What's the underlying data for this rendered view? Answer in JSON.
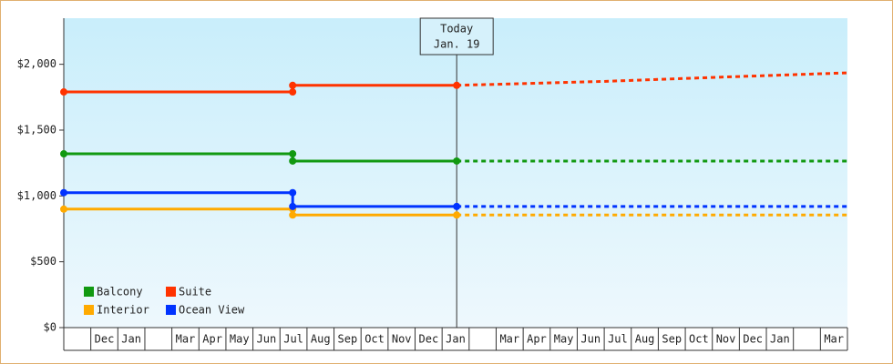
{
  "chart_data": {
    "type": "line",
    "categories": [
      null,
      "Dec",
      "Jan",
      null,
      "Mar",
      "Apr",
      "May",
      "Jun",
      "Jul",
      "Aug",
      "Sep",
      "Oct",
      "Nov",
      "Dec",
      "Jan",
      null,
      "Mar",
      "Apr",
      "May",
      "Jun",
      "Jul",
      "Aug",
      "Sep",
      "Oct",
      "Nov",
      "Dec",
      "Jan",
      null,
      "Mar"
    ],
    "xlim": [
      0,
      29
    ],
    "ylim": [
      0,
      2350
    ],
    "yticks": [
      {
        "value": 0,
        "label": "$0"
      },
      {
        "value": 500,
        "label": "$500"
      },
      {
        "value": 1000,
        "label": "$1,000"
      },
      {
        "value": 1500,
        "label": "$1,500"
      },
      {
        "value": 2000,
        "label": "$2,000"
      }
    ],
    "legend": "lower left",
    "annotation": {
      "text": [
        "Today",
        "Jan. 19"
      ],
      "x": 14.54
    },
    "series": [
      {
        "name": "Balcony",
        "color": "#119911",
        "x": [
          0,
          8.47,
          8.47,
          14.54
        ],
        "values": [
          1320,
          1320,
          1265,
          1265
        ],
        "forecast_x": [
          14.54,
          29
        ],
        "forecast_values": [
          1265,
          1265
        ]
      },
      {
        "name": "Suite",
        "color": "#ff3300",
        "x": [
          0,
          8.47,
          8.47,
          14.54
        ],
        "values": [
          1790,
          1790,
          1840,
          1840
        ],
        "forecast_x": [
          14.54,
          20,
          24,
          29
        ],
        "forecast_values": [
          1840,
          1870,
          1900,
          1935
        ]
      },
      {
        "name": "Interior",
        "color": "#ffaa00",
        "x": [
          0,
          8.47,
          8.47,
          14.54
        ],
        "values": [
          900,
          900,
          855,
          855
        ],
        "forecast_x": [
          14.54,
          29
        ],
        "forecast_values": [
          855,
          855
        ]
      },
      {
        "name": "Ocean View",
        "color": "#0033ff",
        "x": [
          0,
          8.47,
          8.47,
          14.54
        ],
        "values": [
          1025,
          1025,
          920,
          920
        ],
        "forecast_x": [
          14.54,
          29
        ],
        "forecast_values": [
          920,
          920
        ]
      }
    ]
  }
}
